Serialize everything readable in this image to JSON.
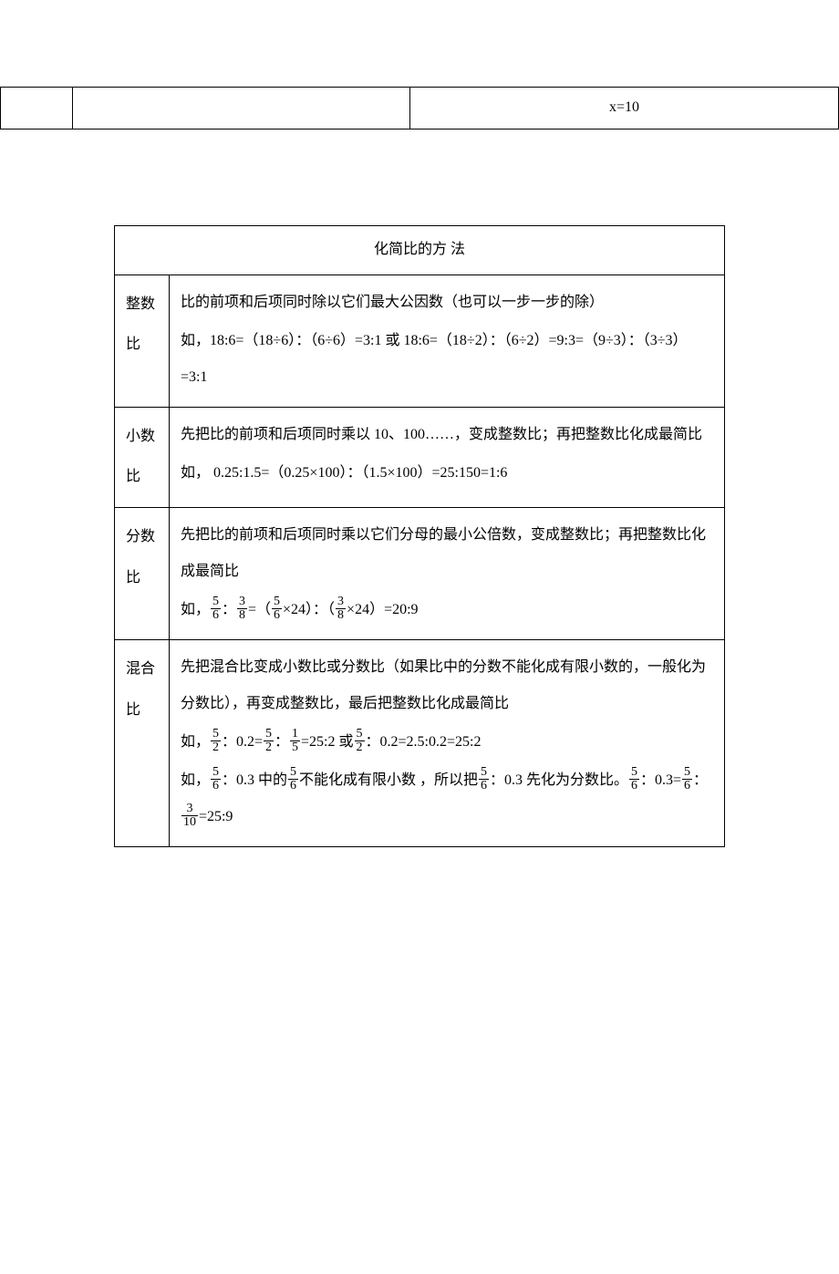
{
  "top_table": {
    "equation": "x=10"
  },
  "main_table": {
    "title": "化简比的方 法",
    "rows": [
      {
        "label": "整数比",
        "lines": [
          {
            "type": "text",
            "value": "比的前项和后项同时除以它们最大公因数（也可以一步一步的除）"
          },
          {
            "type": "text",
            "value": "如，18:6=（18÷6）：（6÷6）=3:1    或 18:6=（18÷2）：（6÷2）=9:3=（9÷3）：（3÷3）=3:1"
          }
        ]
      },
      {
        "label": "小数比",
        "lines": [
          {
            "type": "text",
            "value": "先把比的前项和后项同时乘以 10、100……，变成整数比；再把整数比化成最简比"
          },
          {
            "type": "text",
            "value": "如， 0.25:1.5=（0.25×100）：（1.5×100）=25:150=1:6"
          }
        ]
      },
      {
        "label": "分数比",
        "lines": [
          {
            "type": "text",
            "value": "先把比的前项和后项同时乘以它们分母的最小公倍数，变成整数比；再把整数比化成最简比"
          },
          {
            "type": "frac_line",
            "parts": [
              {
                "t": "text",
                "v": "如，"
              },
              {
                "t": "frac",
                "n": "5",
                "d": "6"
              },
              {
                "t": "text",
                "v": "："
              },
              {
                "t": "frac",
                "n": "3",
                "d": "8"
              },
              {
                "t": "text",
                "v": "=（"
              },
              {
                "t": "frac",
                "n": "5",
                "d": "6"
              },
              {
                "t": "text",
                "v": "×24）：（"
              },
              {
                "t": "frac",
                "n": "3",
                "d": "8"
              },
              {
                "t": "text",
                "v": "×24）=20:9"
              }
            ]
          }
        ]
      },
      {
        "label": "混合比",
        "lines": [
          {
            "type": "text",
            "value": "先把混合比变成小数比或分数比（如果比中的分数不能化成有限小数的，一般化为分数比），再变成整数比，最后把整数比化成最简比"
          },
          {
            "type": "frac_line",
            "parts": [
              {
                "t": "text",
                "v": "如，"
              },
              {
                "t": "frac",
                "n": "5",
                "d": "2"
              },
              {
                "t": "text",
                "v": "：0.2="
              },
              {
                "t": "frac",
                "n": "5",
                "d": "2"
              },
              {
                "t": "text",
                "v": "："
              },
              {
                "t": "frac",
                "n": "1",
                "d": "5"
              },
              {
                "t": "text",
                "v": "=25:2 或"
              },
              {
                "t": "frac",
                "n": "5",
                "d": "2"
              },
              {
                "t": "text",
                "v": "：0.2=2.5:0.2=25:2"
              }
            ]
          },
          {
            "type": "frac_line",
            "parts": [
              {
                "t": "text",
                "v": "如，"
              },
              {
                "t": "frac",
                "n": "5",
                "d": "6"
              },
              {
                "t": "text",
                "v": "：0.3 中的"
              },
              {
                "t": "frac",
                "n": "5",
                "d": "6"
              },
              {
                "t": "text",
                "v": "不能化成有限小数 ，所以把"
              },
              {
                "t": "frac",
                "n": "5",
                "d": "6"
              },
              {
                "t": "text",
                "v": "：0.3 先化为分数比。"
              },
              {
                "t": "frac",
                "n": "5",
                "d": "6"
              },
              {
                "t": "text",
                "v": "：0.3="
              },
              {
                "t": "frac",
                "n": "5",
                "d": "6"
              },
              {
                "t": "text",
                "v": "："
              },
              {
                "t": "frac",
                "n": "3",
                "d": "10"
              },
              {
                "t": "text",
                "v": "=25:9"
              }
            ]
          }
        ]
      }
    ]
  }
}
